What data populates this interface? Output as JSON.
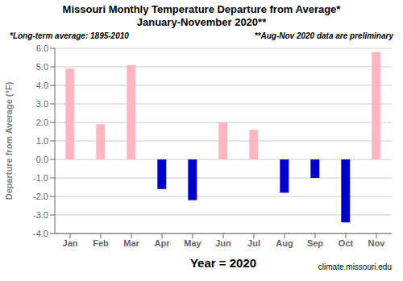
{
  "chart_data": {
    "type": "bar",
    "title": "Missouri Monthly Temperature Departure from Average*",
    "subtitle": "January-November 2020**",
    "annotations": [
      "*Long-term average: 1895-2010",
      "**Aug-Nov 2020 data are preliminary",
      "climate.missouri.edu"
    ],
    "xlabel": "Year = 2020",
    "ylabel": "Departure from Average (°F)",
    "categories": [
      "Jan",
      "Feb",
      "Mar",
      "Apr",
      "May",
      "Jun",
      "Jul",
      "Aug",
      "Sep",
      "Oct",
      "Nov"
    ],
    "values": [
      4.9,
      1.9,
      5.1,
      -1.6,
      -2.2,
      2.0,
      1.6,
      -1.8,
      -1.0,
      -3.4,
      5.8
    ],
    "colors": [
      "#FFB6C1",
      "#FFB6C1",
      "#FFB6C1",
      "#0000CD",
      "#0000CD",
      "#FFB6C1",
      "#FFB6C1",
      "#0000CD",
      "#0000CD",
      "#0000CD",
      "#FFB6C1"
    ],
    "ylim": [
      -4.0,
      6.0
    ],
    "yticks": [
      {
        "value": -4.0,
        "label": "-4.0"
      },
      {
        "value": -3.0,
        "label": "-3.0"
      },
      {
        "value": -2.0,
        "label": "-2.0"
      },
      {
        "value": -1.0,
        "label": "-1.0"
      },
      {
        "value": 0.0,
        "label": "0.0"
      },
      {
        "value": 1.0,
        "label": "1.0"
      },
      {
        "value": 2.0,
        "label": "2.0"
      },
      {
        "value": 3.0,
        "label": "3.0"
      },
      {
        "value": 4.0,
        "label": "4.0"
      },
      {
        "value": 5.0,
        "label": "5.0"
      },
      {
        "value": 6.0,
        "label": "6.0"
      }
    ],
    "grid": true
  }
}
